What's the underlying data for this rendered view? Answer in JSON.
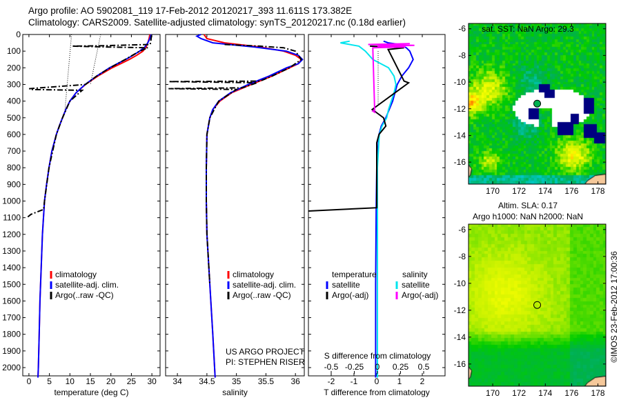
{
  "header": {
    "line1": "Argo profile: AO 5902081_119 17-Feb-2012 20120217_393 11.611S 173.382E",
    "line2": "Climatology: CARS2009. Satellite-adjusted climatology: synTS_20120217.nc (0.18d earlier)"
  },
  "credit": "©IMOS 23-Feb-2012 17:00:36",
  "colors": {
    "climatology": "#ff0000",
    "satellite": "#0000ff",
    "argo": "#000000",
    "salinity_satellite": "#00e5ee",
    "salinity_argo": "#ff00ff"
  },
  "chart_data": [
    {
      "type": "line",
      "name": "temperature",
      "xlabel": "temperature (deg C)",
      "ylabel": "",
      "xlim": [
        -1.5,
        32
      ],
      "ylim": [
        2065,
        0
      ],
      "xticks": [
        "0",
        "5",
        "10",
        "15",
        "20",
        "25",
        "30"
      ],
      "xtick_values": [
        0,
        5,
        10,
        15,
        20,
        25,
        30
      ],
      "yticks": [
        "0",
        "100",
        "200",
        "300",
        "400",
        "500",
        "600",
        "700",
        "800",
        "900",
        "1000",
        "1100",
        "1200",
        "1300",
        "1400",
        "1500",
        "1600",
        "1700",
        "1800",
        "1900",
        "2000"
      ],
      "ytick_values": [
        0,
        100,
        200,
        300,
        400,
        500,
        600,
        700,
        800,
        900,
        1000,
        1100,
        1200,
        1300,
        1400,
        1500,
        1600,
        1700,
        1800,
        1900,
        2000
      ],
      "legend": [
        "climatology",
        "satellite-adj. clim.",
        "Argo(..raw -QC)"
      ],
      "series": [
        {
          "name": "climatology",
          "color": "#ff0000",
          "depth": [
            0,
            25,
            50,
            75,
            100,
            125,
            150,
            175,
            200,
            250,
            300,
            350,
            400,
            450,
            500,
            550,
            600,
            700,
            800,
            900,
            1000,
            1200,
            1400,
            1600,
            1800,
            2000,
            2060
          ],
          "values": [
            29.5,
            29.3,
            29.0,
            28.6,
            27.8,
            26.3,
            24.5,
            22.4,
            20.3,
            16.8,
            13.8,
            11.5,
            10.0,
            9.0,
            8.2,
            7.4,
            6.7,
            5.6,
            4.9,
            4.3,
            3.8,
            3.3,
            3.0,
            2.7,
            2.5,
            2.3,
            2.2
          ]
        },
        {
          "name": "satellite-adj. clim.",
          "color": "#0000ff",
          "depth": [
            0,
            25,
            50,
            75,
            100,
            125,
            150,
            175,
            200,
            250,
            300,
            350,
            400,
            450,
            500,
            550,
            600,
            700,
            800,
            900,
            1000,
            1200,
            1400,
            1600,
            1800,
            2000,
            2060
          ],
          "values": [
            29.8,
            29.5,
            29.0,
            28.3,
            27.0,
            25.4,
            23.6,
            21.6,
            19.7,
            16.5,
            13.7,
            11.5,
            10.0,
            9.0,
            8.2,
            7.4,
            6.7,
            5.6,
            4.9,
            4.3,
            3.8,
            3.3,
            3.0,
            2.7,
            2.5,
            2.3,
            2.2
          ]
        },
        {
          "name": "Argo(..raw -QC)",
          "color": "#000000",
          "style": "dashdot",
          "depth": [
            5,
            30,
            60,
            68,
            70,
            74,
            80,
            100,
            150,
            200,
            250,
            300,
            325,
            330,
            335,
            400,
            500,
            600,
            800,
            1000,
            1050,
            1080,
            1100
          ],
          "values": [
            29.9,
            29.8,
            29.6,
            17,
            10.5,
            17,
            29.0,
            27.0,
            23.5,
            19.8,
            16.5,
            13.8,
            0.2,
            0.2,
            13,
            10,
            8.2,
            6.7,
            4.9,
            3.8,
            3.6,
            0.5,
            -0.5
          ]
        },
        {
          "name": "argo-interp-1",
          "color": "#000000",
          "style": "dotted",
          "depth": [
            0,
            450
          ],
          "values": [
            10.4,
            8.8
          ]
        },
        {
          "name": "argo-interp-2",
          "color": "#000000",
          "style": "dotted",
          "depth": [
            0,
            300
          ],
          "values": [
            17.5,
            15.0
          ]
        }
      ]
    },
    {
      "type": "line",
      "name": "salinity",
      "xlabel": "salinity",
      "xlim": [
        33.8,
        36.15
      ],
      "ylim": [
        2065,
        0
      ],
      "xticks": [
        "34",
        "34.5",
        "35",
        "35.5",
        "36"
      ],
      "xtick_values": [
        34,
        34.5,
        35,
        35.5,
        36
      ],
      "legend": [
        "climatology",
        "satellite-adj. clim.",
        "Argo(..raw -QC)"
      ],
      "annotations": [
        "US ARGO PROJECT",
        "PI: STEPHEN RISER"
      ],
      "series": [
        {
          "name": "climatology",
          "color": "#ff0000",
          "depth": [
            0,
            25,
            50,
            75,
            100,
            125,
            150,
            175,
            200,
            250,
            300,
            350,
            400,
            450,
            500,
            600,
            800,
            1000,
            1200,
            1500,
            1800,
            2000,
            2060
          ],
          "values": [
            34.45,
            34.5,
            34.8,
            35.4,
            35.8,
            36.0,
            36.1,
            36.05,
            35.9,
            35.6,
            35.25,
            34.92,
            34.72,
            34.6,
            34.55,
            34.5,
            34.49,
            34.49,
            34.5,
            34.55,
            34.6,
            34.63,
            34.64
          ]
        },
        {
          "name": "satellite-adj. clim.",
          "color": "#0000ff",
          "depth": [
            0,
            10,
            25,
            50,
            75,
            100,
            125,
            150,
            175,
            200,
            250,
            300,
            350,
            400,
            450,
            500,
            600,
            800,
            1000,
            1200,
            1500,
            1800,
            2000,
            2060
          ],
          "values": [
            34.4,
            34.33,
            34.4,
            34.6,
            35.3,
            35.85,
            36.05,
            36.12,
            36.05,
            35.85,
            35.55,
            35.2,
            34.9,
            34.7,
            34.6,
            34.55,
            34.5,
            34.49,
            34.49,
            34.5,
            34.55,
            34.6,
            34.63,
            34.64
          ]
        },
        {
          "name": "Argo(..raw -QC)",
          "color": "#000000",
          "style": "dashdot",
          "depth": [
            60,
            70,
            80,
            100,
            150,
            200,
            250,
            280,
            283,
            290,
            320,
            325,
            330,
            400,
            500,
            600,
            800,
            1000,
            1200,
            1500
          ],
          "values": [
            34.8,
            35.4,
            35.8,
            36.0,
            36.1,
            35.9,
            35.6,
            35.4,
            33.85,
            35.35,
            35.1,
            33.85,
            35.0,
            34.7,
            34.55,
            34.5,
            34.49,
            34.49,
            34.5,
            34.55
          ]
        }
      ]
    },
    {
      "type": "line",
      "name": "difference",
      "xlabel": "T difference from climatology",
      "xlabel2": "S difference from climatology",
      "xlim": [
        -3,
        3
      ],
      "ylim": [
        2065,
        0
      ],
      "xticks": [
        "-2",
        "-1",
        "0",
        "1",
        "2"
      ],
      "xtick_values": [
        -2,
        -1,
        0,
        1,
        2
      ],
      "xticks2": [
        "-0.5",
        "-0.25",
        "0",
        "0.25",
        "0.5"
      ],
      "xtick2_values": [
        -0.5,
        -0.25,
        0,
        0.25,
        0.5
      ],
      "legend_headers": [
        "temperature",
        "salinity"
      ],
      "legend": [
        "satellite",
        "Argo(-adj)",
        "satellite",
        "Argo(-adj)"
      ],
      "series": [
        {
          "name": "T satellite",
          "axis": "T",
          "color": "#0000ff",
          "depth": [
            40,
            50,
            60,
            80,
            100,
            150,
            200,
            250,
            300,
            350,
            400,
            450,
            500,
            550,
            600,
            700,
            800,
            1000,
            1500,
            2060
          ],
          "values": [
            0.3,
            0.5,
            1.0,
            1.3,
            1.45,
            1.6,
            1.4,
            1.1,
            0.9,
            0.8,
            0.7,
            0.55,
            0.4,
            0.2,
            0.1,
            0.05,
            0.0,
            -0.02,
            -0.05,
            -0.05
          ]
        },
        {
          "name": "S satellite",
          "axis": "S",
          "color": "#00e5ee",
          "depth": [
            40,
            50,
            70,
            100,
            150,
            200,
            250,
            300,
            350,
            400,
            450,
            500,
            550,
            600,
            800,
            1000,
            2060
          ],
          "values": [
            -0.3,
            -0.4,
            -0.2,
            -0.13,
            -0.05,
            0.12,
            0.18,
            0.2,
            0.18,
            0.15,
            0.12,
            0.1,
            0.05,
            0.02,
            0.0,
            0.0,
            0.0
          ]
        },
        {
          "name": "T Argo(-adj)",
          "axis": "T",
          "color": "#000000",
          "depth": [
            70,
            80,
            90,
            280,
            290,
            300,
            450,
            470,
            500,
            550,
            600,
            650,
            1000,
            1040,
            1060
          ],
          "values": [
            -0.3,
            1.2,
            0.5,
            1.2,
            1.4,
            1.3,
            -0.2,
            0.0,
            0.3,
            0.4,
            0.1,
            0,
            0,
            0,
            -3
          ]
        },
        {
          "name": "S Argo(-adj)",
          "axis": "S",
          "color": "#ff00ff",
          "depth": [
            55,
            60,
            65,
            70,
            75,
            80,
            455,
            460,
            470
          ],
          "values": [
            0.35,
            -0.1,
            0.4,
            0.0,
            0.3,
            -0.05,
            -0.03,
            -0.05,
            -0.02
          ]
        }
      ]
    },
    {
      "type": "heatmap",
      "name": "sst-map",
      "title": "sat. SST: NaN Argo: 29.3",
      "xlim": [
        168.16,
        178.6
      ],
      "ylim": [
        -17.65,
        -5.6
      ],
      "xticks": [
        "170",
        "172",
        "174",
        "176",
        "178"
      ],
      "xtick_values": [
        170,
        172,
        174,
        176,
        178
      ],
      "yticks": [
        "-6",
        "-8",
        "-10",
        "-12",
        "-14",
        "-16"
      ],
      "ytick_values": [
        -6,
        -8,
        -10,
        -12,
        -14,
        -16
      ],
      "argo_position": {
        "lon": 173.382,
        "lat": -11.611
      }
    },
    {
      "type": "heatmap",
      "name": "sla-map",
      "title": "Altim. SLA: 0.17",
      "subtitle": "Argo h1000: NaN h2000: NaN",
      "xlim": [
        168.16,
        178.6
      ],
      "ylim": [
        -17.65,
        -5.6
      ],
      "xticks": [
        "170",
        "172",
        "174",
        "176",
        "178"
      ],
      "xtick_values": [
        170,
        172,
        174,
        176,
        178
      ],
      "yticks": [
        "-6",
        "-8",
        "-10",
        "-12",
        "-14",
        "-16"
      ],
      "ytick_values": [
        -6,
        -8,
        -10,
        -12,
        -14,
        -16
      ],
      "argo_position": {
        "lon": 173.382,
        "lat": -11.611
      }
    }
  ]
}
